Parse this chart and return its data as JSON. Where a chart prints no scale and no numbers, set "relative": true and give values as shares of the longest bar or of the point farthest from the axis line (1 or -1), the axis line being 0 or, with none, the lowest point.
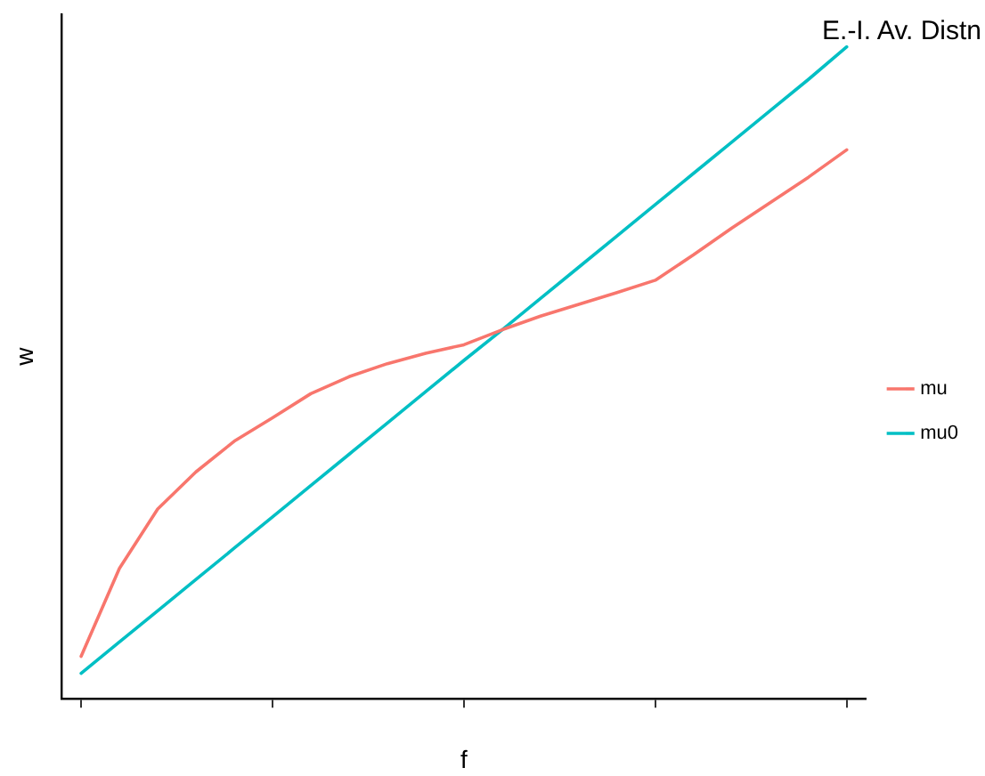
{
  "chart_data": {
    "type": "line",
    "xlabel": "f",
    "ylabel": "w",
    "legend_title": "E.-I. Av. Distn",
    "legend": "right",
    "relative": true,
    "grid": false,
    "marker": "none",
    "line_style": "solid",
    "categories": [
      null,
      null,
      null,
      null,
      null,
      null,
      null,
      null,
      null,
      null,
      null,
      null,
      null,
      null,
      null,
      null,
      null,
      null,
      null,
      null,
      null
    ],
    "series": [
      {
        "name": "mu",
        "color": "#f8766d",
        "values": [
          0.065,
          0.2,
          0.291,
          0.348,
          0.395,
          0.431,
          0.468,
          0.494,
          0.514,
          0.53,
          0.543,
          0.566,
          0.587,
          0.605,
          0.623,
          0.642,
          0.681,
          0.722,
          0.761,
          0.8,
          0.842
        ]
      },
      {
        "name": "mu0",
        "color": "#00bfc4",
        "values": [
          0.039,
          0.087,
          0.135,
          0.183,
          0.231,
          0.279,
          0.327,
          0.375,
          0.423,
          0.471,
          0.519,
          0.566,
          0.614,
          0.662,
          0.71,
          0.758,
          0.806,
          0.854,
          0.902,
          0.95,
          1
        ]
      }
    ]
  }
}
